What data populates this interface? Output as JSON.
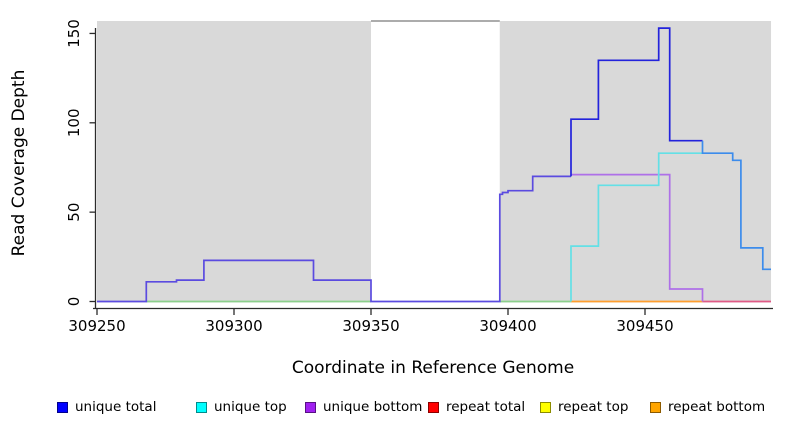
{
  "axes": {
    "x": {
      "label": "Coordinate in Reference Genome",
      "ticks": [
        309250,
        309300,
        309350,
        309400,
        309450
      ],
      "lim": [
        309250,
        309496
      ]
    },
    "y": {
      "label": "Read Coverage Depth",
      "ticks": [
        0,
        50,
        100,
        150
      ],
      "lim": [
        0,
        159
      ]
    }
  },
  "legend": {
    "items": [
      {
        "label": "unique total",
        "color": "#0000FF"
      },
      {
        "label": "unique top",
        "color": "#00FFFF"
      },
      {
        "label": "unique bottom",
        "color": "#A020F0"
      },
      {
        "label": "repeat total",
        "color": "#FF0000"
      },
      {
        "label": "repeat top",
        "color": "#FFFF00"
      },
      {
        "label": "repeat bottom",
        "color": "#FFA500"
      }
    ]
  },
  "chart_data": {
    "type": "line",
    "subtype": "step-coverage-plot",
    "title": "",
    "xlabel": "Coordinate in Reference Genome",
    "ylabel": "Read Coverage Depth",
    "xlim": [
      309250,
      309496
    ],
    "ylim": [
      0,
      159
    ],
    "grid": false,
    "legend_position": "bottom",
    "shaded_regions": {
      "color": "#D9D9D9",
      "x_ranges": [
        [
          309250,
          309350
        ],
        [
          309397,
          309496
        ]
      ]
    },
    "series": [
      {
        "name": "unique total",
        "color": "#0000FF",
        "steps": [
          [
            309250,
            0
          ],
          [
            309268,
            11
          ],
          [
            309279,
            12
          ],
          [
            309289,
            23
          ],
          [
            309329,
            12
          ],
          [
            309350,
            0
          ],
          [
            309397,
            60
          ],
          [
            309400,
            62
          ],
          [
            309409,
            70
          ],
          [
            309423,
            102
          ],
          [
            309433,
            135
          ],
          [
            309455,
            153
          ],
          [
            309459,
            90
          ],
          [
            309471,
            83
          ],
          [
            309482,
            79
          ],
          [
            309485,
            30
          ],
          [
            309493,
            18
          ],
          [
            309496,
            18
          ]
        ]
      },
      {
        "name": "unique top",
        "color": "#00FFFF",
        "steps": [
          [
            309250,
            0
          ],
          [
            309423,
            31
          ],
          [
            309433,
            65
          ],
          [
            309455,
            83
          ],
          [
            309471,
            83
          ],
          [
            309482,
            79
          ],
          [
            309485,
            30
          ],
          [
            309493,
            18
          ],
          [
            309496,
            18
          ]
        ]
      },
      {
        "name": "unique bottom",
        "color": "#A020F0",
        "steps": [
          [
            309250,
            0
          ],
          [
            309268,
            11
          ],
          [
            309279,
            12
          ],
          [
            309289,
            23
          ],
          [
            309329,
            12
          ],
          [
            309350,
            0
          ],
          [
            309397,
            60
          ],
          [
            309400,
            62
          ],
          [
            309409,
            70
          ],
          [
            309423,
            71
          ],
          [
            309459,
            7
          ],
          [
            309471,
            0
          ],
          [
            309496,
            0
          ]
        ]
      },
      {
        "name": "repeat total",
        "color": "#FF0000",
        "steps": [
          [
            309250,
            0
          ],
          [
            309496,
            0
          ]
        ]
      },
      {
        "name": "repeat top",
        "color": "#FFFF00",
        "steps": [
          [
            309250,
            0
          ],
          [
            309496,
            0
          ]
        ]
      },
      {
        "name": "repeat bottom",
        "color": "#FFA500",
        "steps": [
          [
            309250,
            0
          ],
          [
            309496,
            0
          ]
        ]
      }
    ]
  },
  "render": {
    "background": "#FFFFFF",
    "region_fill": "#D9D9D9",
    "gap_top_line": {
      "color": "#909090",
      "from": 309350,
      "to": 309397
    },
    "axis_color": "#2b2b2b",
    "chunks": [
      {
        "name": "baseline-green-left",
        "color": "#8CCF8C",
        "points": [
          [
            309268,
            0
          ],
          [
            309350,
            0
          ]
        ]
      },
      {
        "name": "baseline-green-right",
        "color": "#8CCF8C",
        "points": [
          [
            309397,
            0
          ],
          [
            309423,
            0
          ]
        ]
      },
      {
        "name": "baseline-orange",
        "color": "#FF9E2E",
        "points": [
          [
            309423,
            0
          ],
          [
            309471,
            0
          ]
        ]
      },
      {
        "name": "baseline-pink",
        "color": "#E05A86",
        "points": [
          [
            309471,
            0
          ],
          [
            309496,
            0
          ]
        ]
      },
      {
        "name": "unique-bottom-visible",
        "color": "#AE70E8",
        "points": [
          [
            309423,
            71
          ],
          [
            309459,
            71
          ],
          [
            309459,
            7
          ],
          [
            309471,
            7
          ],
          [
            309471,
            0
          ]
        ]
      },
      {
        "name": "unique-top-visible",
        "color": "#63E0E6",
        "points": [
          [
            309423,
            0
          ],
          [
            309423,
            31
          ],
          [
            309433,
            31
          ],
          [
            309433,
            65
          ],
          [
            309455,
            65
          ],
          [
            309455,
            83
          ],
          [
            309471,
            83
          ]
        ]
      },
      {
        "name": "total-over-bottom",
        "color": "#5B4BE0",
        "points": [
          [
            309250,
            0
          ],
          [
            309268,
            0
          ],
          [
            309268,
            11
          ],
          [
            309279,
            11
          ],
          [
            309279,
            12
          ],
          [
            309289,
            12
          ],
          [
            309289,
            23
          ],
          [
            309329,
            23
          ],
          [
            309329,
            12
          ],
          [
            309350,
            12
          ],
          [
            309350,
            0
          ],
          [
            309397,
            0
          ],
          [
            309397,
            60
          ],
          [
            309398,
            60
          ],
          [
            309398,
            61
          ],
          [
            309400,
            61
          ],
          [
            309400,
            62
          ],
          [
            309409,
            62
          ],
          [
            309409,
            70
          ],
          [
            309423,
            70
          ]
        ]
      },
      {
        "name": "total-alone",
        "color": "#2323DC",
        "points": [
          [
            309423,
            70
          ],
          [
            309423,
            102
          ],
          [
            309433,
            102
          ],
          [
            309433,
            135
          ],
          [
            309455,
            135
          ],
          [
            309455,
            153
          ],
          [
            309459,
            153
          ],
          [
            309459,
            90
          ],
          [
            309471,
            90
          ]
        ]
      },
      {
        "name": "total-over-top",
        "color": "#3C8CEC",
        "points": [
          [
            309471,
            90
          ],
          [
            309471,
            83
          ],
          [
            309482,
            83
          ],
          [
            309482,
            79
          ],
          [
            309485,
            79
          ],
          [
            309485,
            30
          ],
          [
            309493,
            30
          ],
          [
            309493,
            18
          ],
          [
            309496,
            18
          ]
        ]
      }
    ]
  }
}
